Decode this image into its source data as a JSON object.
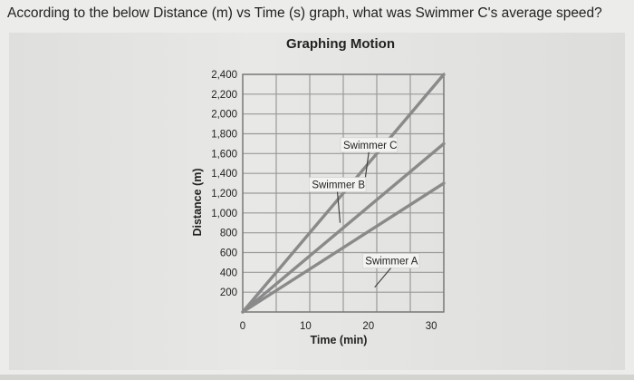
{
  "question": "According to the below Distance (m) vs Time (s) graph, what was Swimmer C's average speed?",
  "chart_data": {
    "type": "line",
    "title": "Graphing Motion",
    "xlabel": "Time (min)",
    "ylabel": "Distance (m)",
    "xlim": [
      0,
      32
    ],
    "ylim": [
      0,
      2400
    ],
    "x_tick_labels": [
      "0",
      "10",
      "20",
      "30"
    ],
    "x_ticks": [
      0,
      10,
      20,
      30
    ],
    "y_tick_labels": [
      "200",
      "400",
      "600",
      "800",
      "1,000",
      "1,200",
      "1,400",
      "1,600",
      "1,800",
      "2,000",
      "2,200",
      "2,400"
    ],
    "y_ticks": [
      200,
      400,
      600,
      800,
      1000,
      1200,
      1400,
      1600,
      1800,
      2000,
      2200,
      2400
    ],
    "grid": true,
    "series": [
      {
        "name": "Swimmer A",
        "x": [
          0,
          32
        ],
        "y": [
          0,
          1300
        ]
      },
      {
        "name": "Swimmer B",
        "x": [
          0,
          32
        ],
        "y": [
          0,
          1700
        ]
      },
      {
        "name": "Swimmer C",
        "x": [
          0,
          32
        ],
        "y": [
          0,
          2400
        ]
      }
    ],
    "annotations": [
      {
        "text": "Swimmer C",
        "x": 16,
        "y": 1650,
        "arrow_to": [
          19.5,
          1350
        ]
      },
      {
        "text": "Swimmer B",
        "x": 11,
        "y": 1250,
        "arrow_to": [
          15.5,
          900
        ]
      },
      {
        "text": "Swimmer A",
        "x": 19.5,
        "y": 480,
        "arrow_to": [
          21,
          250
        ]
      }
    ],
    "line_color": "#8a8a8a",
    "grid_color": "#9a9a9a"
  }
}
